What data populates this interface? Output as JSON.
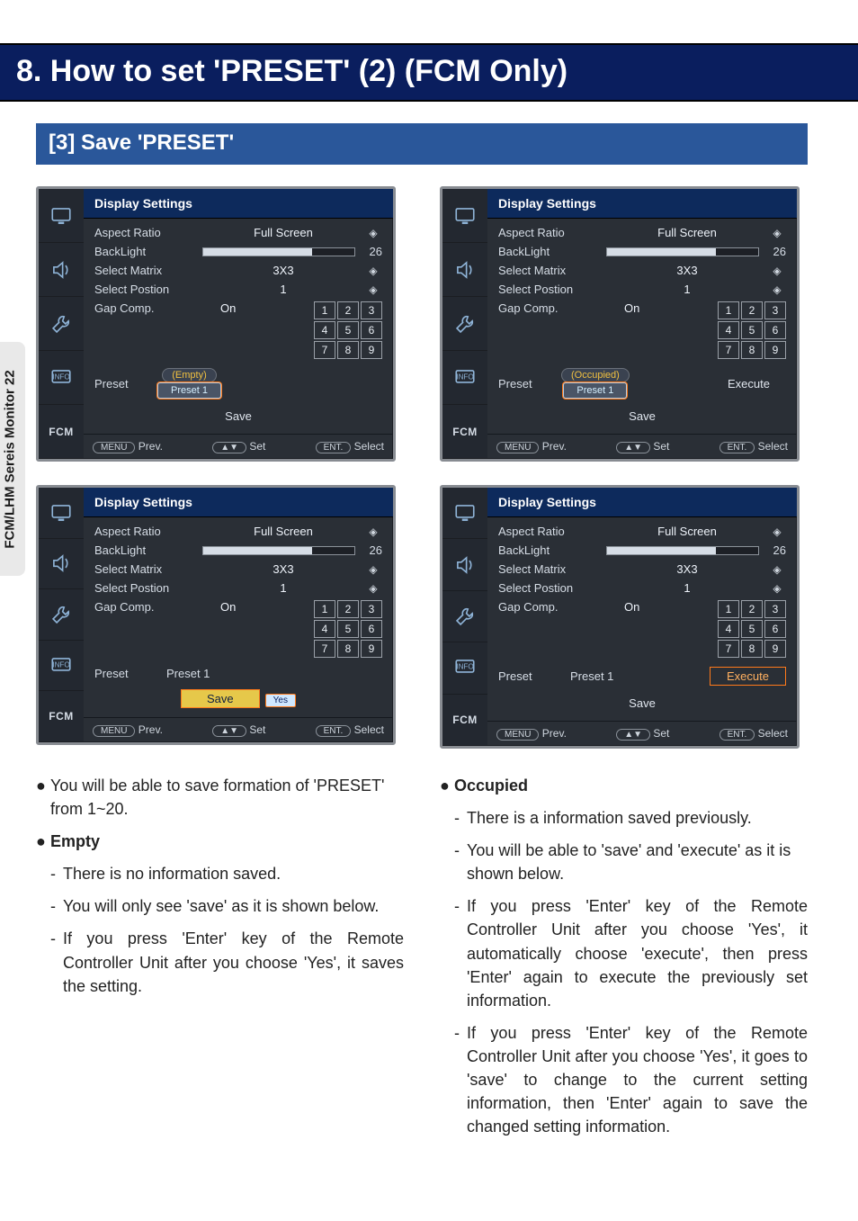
{
  "sidebar_tab": "FCM/LHM Sereis Monitor  22",
  "title": "8. How to set 'PRESET' (2) (FCM Only)",
  "section": "[3] Save 'PRESET'",
  "osd_common": {
    "title": "Display Settings",
    "fcm_label": "FCM",
    "rows": {
      "aspect_label": "Aspect Ratio",
      "aspect_value": "Full Screen",
      "backlight_label": "BackLight",
      "backlight_value": 26,
      "backlight_pct": 72,
      "matrix_label": "Select Matrix",
      "matrix_value": "3X3",
      "position_label": "Select Postion",
      "position_value": "1",
      "gap_label": "Gap Comp.",
      "gap_value": "On",
      "preset_label": "Preset",
      "save_label": "Save",
      "execute_label": "Execute",
      "grid": [
        "1",
        "2",
        "3",
        "4",
        "5",
        "6",
        "7",
        "8",
        "9"
      ]
    },
    "bottom": {
      "prev_key": "MENU",
      "prev_label": "Prev.",
      "set_key": "▲▼",
      "set_label": "Set",
      "select_key": "ENT.",
      "select_label": "Select"
    }
  },
  "shots": {
    "a": {
      "badge_text": "(Empty)",
      "preset_value": "Preset 1",
      "preset_highlight": true,
      "show_execute": false,
      "execute_highlight": false,
      "save_highlight": false,
      "show_yes": false,
      "preset_plain": false
    },
    "b": {
      "badge_text": "(Occupied)",
      "preset_value": "Preset 1",
      "preset_highlight": true,
      "show_execute": true,
      "execute_highlight": false,
      "save_highlight": false,
      "show_yes": false,
      "preset_plain": false
    },
    "c": {
      "badge_text": "",
      "preset_value": "Preset 1",
      "preset_highlight": false,
      "show_execute": false,
      "execute_highlight": false,
      "save_highlight": true,
      "show_yes": true,
      "yes_text": "Yes",
      "preset_plain": true
    },
    "d": {
      "badge_text": "",
      "preset_value": "Preset 1",
      "preset_highlight": false,
      "show_execute": true,
      "execute_highlight": true,
      "save_highlight": false,
      "show_yes": false,
      "preset_plain": true
    }
  },
  "text": {
    "left": {
      "p1": "You will be able to save formation of 'PRESET' from 1~20.",
      "h1": "Empty",
      "l1": "There is no information saved.",
      "l2": "You will only see 'save' as it is shown below.",
      "l3": "If you press 'Enter' key of the Remote Controller Unit after you choose 'Yes', it saves  the setting."
    },
    "right": {
      "h1": "Occupied",
      "l1": "There is a information saved previously.",
      "l2": "You will be able to 'save' and 'execute' as it is shown below.",
      "l3": "If you press 'Enter' key of the Remote Controller Unit after you choose 'Yes', it automatically choose 'execute', then press 'Enter' again to  execute the previously set information.",
      "l4": "If you press 'Enter' key of the Remote Controller Unit after you choose 'Yes', it goes to 'save' to change  to the current setting information, then 'Enter' again to save the changed setting information."
    }
  },
  "colors": {
    "title_bg": "#0a1e5e",
    "section_bg": "#2a579a",
    "osd_border": "#888c92",
    "osd_bg": "#2a2f36",
    "osd_title_bg": "#0d2a5c",
    "highlight": "#ff7a1a",
    "save_hl_bg": "#e6c84a",
    "text": "#222222",
    "sidebar_bg": "#e9e9e9"
  }
}
